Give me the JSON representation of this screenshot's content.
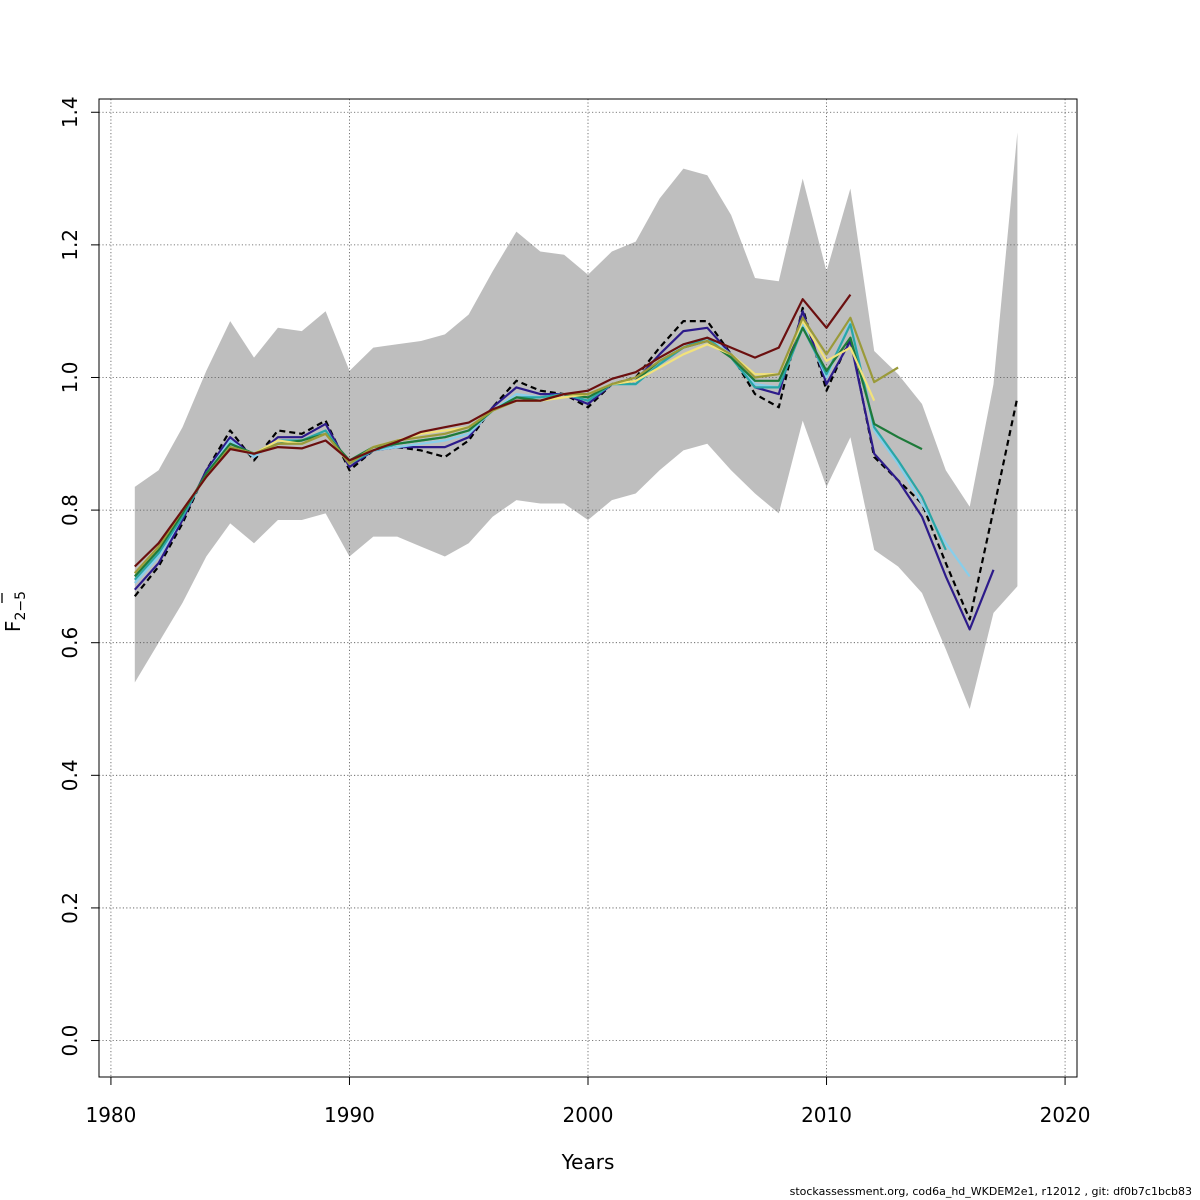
{
  "chart_data": {
    "type": "line",
    "xlabel": "Years",
    "ylabel": "F",
    "ylabel_sub": "2−5",
    "xlim": [
      1979.5,
      2020.5
    ],
    "ylim": [
      -0.055,
      1.42
    ],
    "xticks": [
      1980,
      1990,
      2000,
      2010,
      2020
    ],
    "xtick_labels": [
      "1980",
      "1990",
      "2000",
      "2010",
      "2020"
    ],
    "yticks": [
      0.0,
      0.2,
      0.4,
      0.6,
      0.8,
      1.0,
      1.2,
      1.4
    ],
    "ytick_labels": [
      "0.0",
      "0.2",
      "0.4",
      "0.6",
      "0.8",
      "1.0",
      "1.2",
      "1.4"
    ],
    "grid": true,
    "confidence_band": {
      "color": "#bebebe",
      "x": [
        1981,
        1982,
        1983,
        1984,
        1985,
        1986,
        1987,
        1988,
        1989,
        1990,
        1991,
        1992,
        1993,
        1994,
        1995,
        1996,
        1997,
        1998,
        1999,
        2000,
        2001,
        2002,
        2003,
        2004,
        2005,
        2006,
        2007,
        2008,
        2009,
        2010,
        2011,
        2012,
        2013,
        2014,
        2015,
        2016,
        2017,
        2018
      ],
      "lower": [
        0.54,
        0.6,
        0.66,
        0.73,
        0.78,
        0.75,
        0.785,
        0.785,
        0.795,
        0.73,
        0.76,
        0.76,
        0.745,
        0.73,
        0.75,
        0.79,
        0.815,
        0.81,
        0.81,
        0.785,
        0.815,
        0.825,
        0.86,
        0.89,
        0.9,
        0.86,
        0.825,
        0.795,
        0.935,
        0.835,
        0.91,
        0.74,
        0.715,
        0.675,
        0.59,
        0.5,
        0.645,
        0.685
      ],
      "upper": [
        0.835,
        0.86,
        0.925,
        1.01,
        1.085,
        1.03,
        1.075,
        1.07,
        1.1,
        1.01,
        1.045,
        1.05,
        1.055,
        1.065,
        1.095,
        1.16,
        1.22,
        1.19,
        1.185,
        1.155,
        1.19,
        1.205,
        1.27,
        1.315,
        1.305,
        1.245,
        1.15,
        1.145,
        1.3,
        1.16,
        1.285,
        1.04,
        1.005,
        0.96,
        0.86,
        0.805,
        0.99,
        1.37
      ]
    },
    "series": [
      {
        "color": "#000000",
        "dashed": true,
        "x": [
          1981,
          1982,
          1983,
          1984,
          1985,
          1986,
          1987,
          1988,
          1989,
          1990,
          1991,
          1992,
          1993,
          1994,
          1995,
          1996,
          1997,
          1998,
          1999,
          2000,
          2001,
          2002,
          2003,
          2004,
          2005,
          2006,
          2007,
          2008,
          2009,
          2010,
          2011,
          2012,
          2013,
          2014,
          2015,
          2016,
          2017,
          2018
        ],
        "values": [
          0.67,
          0.715,
          0.78,
          0.86,
          0.92,
          0.875,
          0.92,
          0.915,
          0.935,
          0.86,
          0.89,
          0.895,
          0.89,
          0.88,
          0.905,
          0.955,
          0.995,
          0.98,
          0.975,
          0.955,
          0.99,
          1.0,
          1.045,
          1.085,
          1.085,
          1.035,
          0.975,
          0.955,
          1.105,
          0.98,
          1.06,
          0.88,
          0.845,
          0.81,
          0.72,
          0.635,
          0.8,
          0.97
        ]
      },
      {
        "color": "#2d1b8a",
        "x": [
          1981,
          1982,
          1983,
          1984,
          1985,
          1986,
          1987,
          1988,
          1989,
          1990,
          1991,
          1992,
          1993,
          1994,
          1995,
          1996,
          1997,
          1998,
          1999,
          2000,
          2001,
          2002,
          2003,
          2004,
          2005,
          2006,
          2007,
          2008,
          2009,
          2010,
          2011,
          2012,
          2013,
          2014,
          2015,
          2016,
          2017
        ],
        "values": [
          0.68,
          0.72,
          0.785,
          0.86,
          0.91,
          0.88,
          0.91,
          0.91,
          0.93,
          0.865,
          0.89,
          0.895,
          0.895,
          0.895,
          0.91,
          0.955,
          0.985,
          0.975,
          0.975,
          0.96,
          0.99,
          0.995,
          1.035,
          1.07,
          1.075,
          1.035,
          0.985,
          0.975,
          1.1,
          0.99,
          1.055,
          0.885,
          0.845,
          0.79,
          0.7,
          0.62,
          0.71
        ]
      },
      {
        "color": "#87ceeb",
        "x": [
          1981,
          1982,
          1983,
          1984,
          1985,
          1986,
          1987,
          1988,
          1989,
          1990,
          1991,
          1992,
          1993,
          1994,
          1995,
          1996,
          1997,
          1998,
          1999,
          2000,
          2001,
          2002,
          2003,
          2004,
          2005,
          2006,
          2007,
          2008,
          2009,
          2010,
          2011,
          2012,
          2013,
          2014,
          2015,
          2016
        ],
        "values": [
          0.69,
          0.73,
          0.79,
          0.855,
          0.905,
          0.88,
          0.905,
          0.905,
          0.92,
          0.87,
          0.89,
          0.895,
          0.9,
          0.905,
          0.915,
          0.95,
          0.975,
          0.97,
          0.975,
          0.965,
          0.99,
          0.99,
          1.02,
          1.05,
          1.06,
          1.035,
          0.99,
          0.985,
          1.08,
          1.0,
          1.085,
          0.92,
          0.87,
          0.81,
          0.75,
          0.7
        ]
      },
      {
        "color": "#2aa6a6",
        "x": [
          1981,
          1982,
          1983,
          1984,
          1985,
          1986,
          1987,
          1988,
          1989,
          1990,
          1991,
          1992,
          1993,
          1994,
          1995,
          1996,
          1997,
          1998,
          1999,
          2000,
          2001,
          2002,
          2003,
          2004,
          2005,
          2006,
          2007,
          2008,
          2009,
          2010,
          2011,
          2012,
          2013,
          2014,
          2015
        ],
        "values": [
          0.695,
          0.735,
          0.79,
          0.855,
          0.9,
          0.885,
          0.905,
          0.905,
          0.92,
          0.87,
          0.89,
          0.9,
          0.905,
          0.91,
          0.92,
          0.95,
          0.97,
          0.97,
          0.975,
          0.965,
          0.99,
          0.99,
          1.02,
          1.045,
          1.06,
          1.03,
          0.985,
          0.985,
          1.075,
          1.005,
          1.08,
          0.925,
          0.875,
          0.82,
          0.74
        ]
      },
      {
        "color": "#1e7a3a",
        "x": [
          1981,
          1982,
          1983,
          1984,
          1985,
          1986,
          1987,
          1988,
          1989,
          1990,
          1991,
          1992,
          1993,
          1994,
          1995,
          1996,
          1997,
          1998,
          1999,
          2000,
          2001,
          2002,
          2003,
          2004,
          2005,
          2006,
          2007,
          2008,
          2009,
          2010,
          2011,
          2012,
          2013,
          2014
        ],
        "values": [
          0.7,
          0.74,
          0.795,
          0.855,
          0.9,
          0.885,
          0.9,
          0.905,
          0.915,
          0.875,
          0.895,
          0.9,
          0.905,
          0.91,
          0.92,
          0.95,
          0.97,
          0.965,
          0.975,
          0.97,
          0.99,
          0.995,
          1.025,
          1.045,
          1.055,
          1.03,
          0.995,
          0.995,
          1.075,
          1.01,
          1.06,
          0.93,
          0.91,
          0.892
        ]
      },
      {
        "color": "#f2e27a",
        "x": [
          1981,
          1982,
          1983,
          1984,
          1985,
          1986,
          1987,
          1988,
          1989,
          1990,
          1991,
          1992,
          1993,
          1994,
          1995,
          1996,
          1997,
          1998,
          1999,
          2000,
          2001,
          2002,
          2003,
          2004,
          2005,
          2006,
          2007,
          2008,
          2009,
          2010,
          2011,
          2012
        ],
        "values": [
          0.705,
          0.745,
          0.8,
          0.85,
          0.895,
          0.885,
          0.905,
          0.9,
          0.915,
          0.87,
          0.895,
          0.905,
          0.915,
          0.92,
          0.925,
          0.95,
          0.965,
          0.965,
          0.97,
          0.975,
          0.99,
          0.995,
          1.015,
          1.035,
          1.05,
          1.035,
          1.005,
          1.005,
          1.085,
          1.025,
          1.045,
          0.965
        ]
      },
      {
        "color": "#9a9a3a",
        "x": [
          1981,
          1982,
          1983,
          1984,
          1985,
          1986,
          1987,
          1988,
          1989,
          1990,
          1991,
          1992,
          1993,
          1994,
          1995,
          1996,
          1997,
          1998,
          1999,
          2000,
          2001,
          2002,
          2003,
          2004,
          2005,
          2006,
          2007,
          2008,
          2009,
          2010,
          2011,
          2012,
          2013
        ],
        "values": [
          0.705,
          0.745,
          0.8,
          0.85,
          0.895,
          0.885,
          0.9,
          0.9,
          0.915,
          0.87,
          0.895,
          0.905,
          0.91,
          0.915,
          0.925,
          0.95,
          0.965,
          0.965,
          0.975,
          0.975,
          0.99,
          1.0,
          1.025,
          1.045,
          1.055,
          1.035,
          1.0,
          1.005,
          1.09,
          1.035,
          1.09,
          0.993,
          1.015
        ]
      },
      {
        "color": "#6b0f0f",
        "x": [
          1981,
          1982,
          1983,
          1984,
          1985,
          1986,
          1987,
          1988,
          1989,
          1990,
          1991,
          1992,
          1993,
          1994,
          1995,
          1996,
          1997,
          1998,
          1999,
          2000,
          2001,
          2002,
          2003,
          2004,
          2005,
          2006,
          2007,
          2008,
          2009,
          2010,
          2011
        ],
        "values": [
          0.715,
          0.75,
          0.8,
          0.85,
          0.892,
          0.885,
          0.895,
          0.893,
          0.905,
          0.875,
          0.89,
          0.903,
          0.918,
          0.925,
          0.932,
          0.952,
          0.965,
          0.965,
          0.975,
          0.98,
          0.998,
          1.008,
          1.03,
          1.05,
          1.06,
          1.045,
          1.03,
          1.045,
          1.118,
          1.075,
          1.125
        ]
      }
    ]
  },
  "footer": {
    "text": "stockassessment.org, cod6a_hd_WKDEM2e1, r12012 , git: df0b7c1bcb83"
  }
}
